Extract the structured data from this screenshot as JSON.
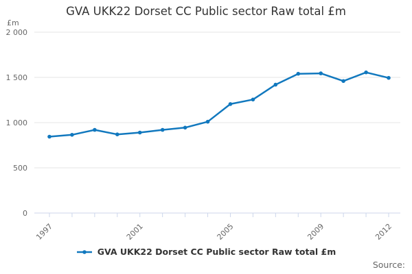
{
  "source_label": "Source:",
  "colors": {
    "series": "#1178be",
    "grid": "#e6e6e6",
    "axis": "#ccd6eb",
    "title_text": "#333333",
    "axis_label_text": "#666666",
    "legend_text": "#333333",
    "source_text": "#666666",
    "background": "#ffffff"
  },
  "chart_data": {
    "type": "line",
    "title": "GVA UKK22 Dorset CC Public sector Raw total £m",
    "xlabel": "",
    "ylabel": "£m",
    "ylim": [
      0,
      2000
    ],
    "grid": true,
    "legend_position": "bottom",
    "x": [
      1997,
      1998,
      1999,
      2000,
      2001,
      2002,
      2003,
      2004,
      2005,
      2006,
      2007,
      2008,
      2009,
      2010,
      2011,
      2012
    ],
    "series": [
      {
        "name": "GVA UKK22 Dorset CC Public sector Raw total £m",
        "values": [
          845,
          865,
          920,
          870,
          890,
          920,
          945,
          1010,
          1205,
          1255,
          1420,
          1540,
          1545,
          1460,
          1555,
          1495
        ]
      }
    ],
    "yticks": [
      {
        "value": 0,
        "label": "0"
      },
      {
        "value": 500,
        "label": "500"
      },
      {
        "value": 1000,
        "label": "1 000"
      },
      {
        "value": 1500,
        "label": "1 500"
      },
      {
        "value": 2000,
        "label": "2 000"
      }
    ],
    "xtick_labels": [
      "1997",
      "2001",
      "2005",
      "2009",
      "2012"
    ]
  }
}
